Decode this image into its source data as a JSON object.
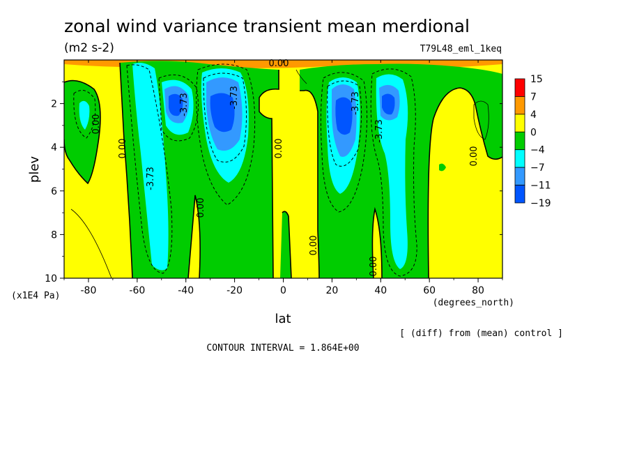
{
  "chart_data": {
    "type": "contour",
    "title": "zonal wind variance transient mean merdional",
    "units": "(m2 s-2)",
    "experiment": "T79L48_eml_1keq",
    "xlabel": "lat",
    "x_units": "(degrees_north)",
    "ylabel": "plev",
    "y_units": "(x1E4 Pa)",
    "xlim": [
      -90,
      90
    ],
    "ylim": [
      10,
      0
    ],
    "x_ticks": [
      -80,
      -60,
      -40,
      -20,
      0,
      20,
      40,
      60,
      80
    ],
    "y_ticks": [
      2,
      4,
      6,
      8,
      10
    ],
    "x_tick_labels": [
      "-80",
      "-60",
      "-40",
      "-20",
      "0",
      "20",
      "40",
      "60",
      "80"
    ],
    "y_tick_labels": [
      "2",
      "4",
      "6",
      "8",
      "10"
    ],
    "colorbar": {
      "levels": [
        15,
        7,
        4,
        0,
        -4,
        -7,
        -11,
        -19
      ],
      "labels": [
        "15",
        "7",
        "4",
        "0",
        "−4",
        "−7",
        "−11",
        "−19"
      ],
      "colors": [
        "#ff0000",
        "#ff9900",
        "#ffff00",
        "#00cc00",
        "#00ffff",
        "#3399ff",
        "#0055ff"
      ]
    },
    "contour_labels": [
      "0.00",
      "0.00",
      "0.00",
      "0.00",
      "0.00",
      "0.00",
      "0.00",
      "0.00",
      "0.00",
      "-3.73",
      "-3.73",
      "-3.73",
      "-3.73",
      "-3.73"
    ],
    "minima": [
      {
        "lat": -25,
        "plev": 2.5,
        "value": -19
      },
      {
        "lat": 27,
        "plev": 2.6,
        "value": -19
      },
      {
        "lat": -45,
        "plev": 2.2,
        "value": -11
      },
      {
        "lat": 42,
        "plev": 2.3,
        "value": -11
      }
    ],
    "footer_note": "[ (diff) from (mean) control ]",
    "contour_interval": "CONTOUR INTERVAL = 1.864E+00"
  },
  "colors": {
    "red": "#ff0000",
    "orange": "#ff9900",
    "yellow": "#ffff00",
    "green": "#00cc00",
    "cyan": "#00ffff",
    "midblue": "#3399ff",
    "blue": "#0055ff"
  }
}
